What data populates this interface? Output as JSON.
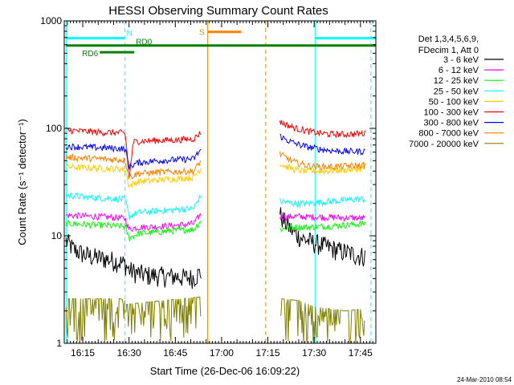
{
  "chart_data": {
    "type": "line",
    "title": "HESSI Observing Summary Count Rates",
    "xlabel": "Start Time (26-Dec-06 16:09:22)",
    "ylabel": "Count Rate (s⁻¹ detector⁻¹)",
    "footer": "24-Mar-2010 08:54",
    "x_units": "minutes from 16:00 UT",
    "xlim": [
      69,
      170
    ],
    "ylim": [
      1,
      1000
    ],
    "yscale": "log",
    "x_ticks": [
      {
        "value": 75,
        "label": "16:15"
      },
      {
        "value": 90,
        "label": "16:30"
      },
      {
        "value": 105,
        "label": "16:45"
      },
      {
        "value": 120,
        "label": "17:00"
      },
      {
        "value": 135,
        "label": "17:15"
      },
      {
        "value": 150,
        "label": "17:30"
      },
      {
        "value": 165,
        "label": "17:45"
      }
    ],
    "y_ticks": [
      {
        "value": 1,
        "label": "1"
      },
      {
        "value": 10,
        "label": "10"
      },
      {
        "value": 100,
        "label": "100"
      },
      {
        "value": 1000,
        "label": "1000"
      }
    ],
    "legend_header": [
      "Det 1,3,4,5,6,9,",
      "FDecim 1, Att 0"
    ],
    "series": [
      {
        "name": "3 - 6 keV",
        "color": "#000000",
        "segments": [
          {
            "x": [
              69.6,
              72,
              75,
              78,
              81,
              84,
              87,
              88.7,
              90,
              93,
              96,
              99,
              102,
              105,
              108,
              111,
              113.4
            ],
            "y": [
              9,
              7.5,
              6.8,
              6.4,
              6.2,
              6.0,
              5.7,
              5.5,
              4.8,
              4.5,
              4.3,
              4.3,
              4.2,
              4.2,
              4.1,
              4.1,
              4.6
            ]
          },
          {
            "x": [
              138.9,
              140,
              141.5,
              143,
              146,
              149,
              152,
              155,
              158,
              161,
              164,
              166.5
            ],
            "y": [
              16,
              14,
              12.5,
              11,
              9.5,
              8.8,
              8.3,
              7.8,
              7.3,
              7,
              6.6,
              6.5
            ]
          }
        ]
      },
      {
        "name": "6 - 12 keV",
        "color": "#ff00ff",
        "segments": [
          {
            "x": [
              69.6,
              75,
              81,
              87,
              88.7,
              90,
              93,
              99,
              105,
              111,
              113.4
            ],
            "y": [
              15.5,
              15.3,
              15,
              14.7,
              14.5,
              11.5,
              12,
              12.2,
              12.5,
              13,
              16
            ]
          },
          {
            "x": [
              138.9,
              141,
              144,
              148,
              152,
              156,
              160,
              164,
              166.5
            ],
            "y": [
              15,
              15,
              15.2,
              15,
              15,
              14.8,
              14.8,
              14.6,
              14.5
            ]
          }
        ]
      },
      {
        "name": "12 - 25 keV",
        "color": "#00ff00",
        "segments": [
          {
            "x": [
              69.6,
              75,
              81,
              87,
              88.7,
              90,
              93,
              99,
              105,
              111,
              113.4
            ],
            "y": [
              13,
              12.8,
              12.5,
              12.3,
              12.2,
              9.5,
              10.5,
              10.8,
              11.2,
              11.5,
              14
            ]
          },
          {
            "x": [
              138.9,
              141,
              144,
              148,
              152,
              156,
              160,
              164,
              166.5
            ],
            "y": [
              11.5,
              11.8,
              12,
              12,
              12.2,
              12.4,
              12.6,
              12.8,
              13
            ]
          }
        ]
      },
      {
        "name": "25 - 50 keV",
        "color": "#00ffff",
        "segments": [
          {
            "x": [
              69.6,
              75,
              81,
              87,
              88.7,
              90,
              93,
              99,
              105,
              111,
              113.4
            ],
            "y": [
              24,
              23,
              22.5,
              22,
              21.8,
              15,
              16.5,
              17,
              17.5,
              18,
              24
            ]
          },
          {
            "x": [
              138.9,
              141,
              144,
              148,
              152,
              156,
              160,
              164,
              166.5
            ],
            "y": [
              21,
              20.5,
              20,
              20,
              20.5,
              21,
              21.5,
              22,
              22
            ]
          }
        ]
      },
      {
        "name": "50 - 100 keV",
        "color": "#ffcc00",
        "segments": [
          {
            "x": [
              69.6,
              75,
              81,
              87,
              88.7,
              90,
              93,
              99,
              105,
              111,
              113.4
            ],
            "y": [
              44,
              43,
              42.5,
              42,
              41.5,
              29,
              32,
              33,
              34,
              35,
              43
            ]
          },
          {
            "x": [
              138.9,
              141,
              144,
              148,
              152,
              156,
              160,
              164,
              166.5
            ],
            "y": [
              47,
              44,
              41,
              40,
              40,
              40.5,
              41,
              42,
              42.5
            ]
          }
        ]
      },
      {
        "name": "100 - 300 keV",
        "color": "#ff0000",
        "segments": [
          {
            "x": [
              69.6,
              75,
              81,
              87,
              88.7,
              90,
              91.5,
              93,
              99,
              105,
              111,
              113.4
            ],
            "y": [
              96,
              94,
              92,
              91,
              90,
              30,
              75,
              76,
              77,
              78,
              80,
              92
            ]
          },
          {
            "x": [
              138.9,
              141,
              144,
              148,
              152,
              156,
              160,
              164,
              166.5
            ],
            "y": [
              115,
              108,
              100,
              94,
              90,
              88,
              88,
              89,
              90
            ]
          }
        ]
      },
      {
        "name": "300 - 800 keV",
        "color": "#0000ff",
        "segments": [
          {
            "x": [
              69.6,
              75,
              81,
              87,
              88.7,
              90,
              93,
              99,
              105,
              111,
              113.4
            ],
            "y": [
              68,
              67,
              66,
              65,
              64,
              44,
              48,
              50,
              51,
              52,
              64
            ]
          },
          {
            "x": [
              138.9,
              141,
              144,
              148,
              152,
              156,
              160,
              164,
              166.5
            ],
            "y": [
              85,
              78,
              72,
              67,
              64,
              62,
              61,
              61,
              61
            ]
          }
        ]
      },
      {
        "name": "800 - 7000 keV",
        "color": "#ff8000",
        "segments": [
          {
            "x": [
              69.6,
              75,
              81,
              87,
              88.7,
              90,
              93,
              99,
              105,
              111,
              113.4
            ],
            "y": [
              54,
              53,
              52,
              51,
              50.5,
              35,
              38,
              39,
              39.5,
              40,
              50
            ]
          },
          {
            "x": [
              138.9,
              141,
              144,
              148,
              152,
              156,
              160,
              164,
              166.5
            ],
            "y": [
              58,
              53,
              48,
              45,
              44,
              44,
              44.5,
              45,
              45.5
            ]
          }
        ]
      },
      {
        "name": "7000 - 20000 keV",
        "color": "#808000",
        "segments": [
          {
            "x": [
              69.6,
              75,
              81,
              87,
              88.7
            ],
            "y": [
              2.6,
              2.6,
              2.6,
              2.6,
              2.5
            ]
          },
          {
            "x": [
              89,
              95,
              101,
              107,
              113.4
            ],
            "y": [
              2.3,
              2.4,
              2.5,
              2.6,
              2.7
            ]
          },
          {
            "x": [
              139,
              145,
              150,
              155,
              160,
              166.5
            ],
            "y": [
              2.6,
              2.5,
              2.2,
              2.1,
              2.0,
              2.1
            ]
          }
        ]
      }
    ],
    "flags": [
      {
        "label": "N",
        "color": "#00ffff",
        "y": 690,
        "segments": [
          [
            69.6,
            88.7
          ],
          [
            150.3,
            170
          ]
        ]
      },
      {
        "label": "RD0",
        "color": "#008000",
        "y": 590,
        "segments": [
          [
            69.6,
            170
          ]
        ]
      },
      {
        "label": "RD6",
        "color": "#008000",
        "y": 510,
        "segments": [
          [
            80.5,
            91.7
          ]
        ]
      },
      {
        "label": "S",
        "color": "#ff8000",
        "y": 790,
        "segments": [
          [
            115.5,
            126.4
          ]
        ]
      }
    ],
    "vertical_lines": [
      {
        "x": 69.6,
        "color": "#00ffff",
        "style": "solid"
      },
      {
        "x": 88.7,
        "color": "#00ffff",
        "style": "dashed"
      },
      {
        "x": 150.3,
        "color": "#00ffff",
        "style": "solid"
      },
      {
        "x": 168.4,
        "color": "#00ffff",
        "style": "dashed"
      },
      {
        "x": 115.5,
        "color": "#ff8000",
        "style": "solid"
      },
      {
        "x": 134.3,
        "color": "#ff8000",
        "style": "dashed"
      }
    ]
  }
}
